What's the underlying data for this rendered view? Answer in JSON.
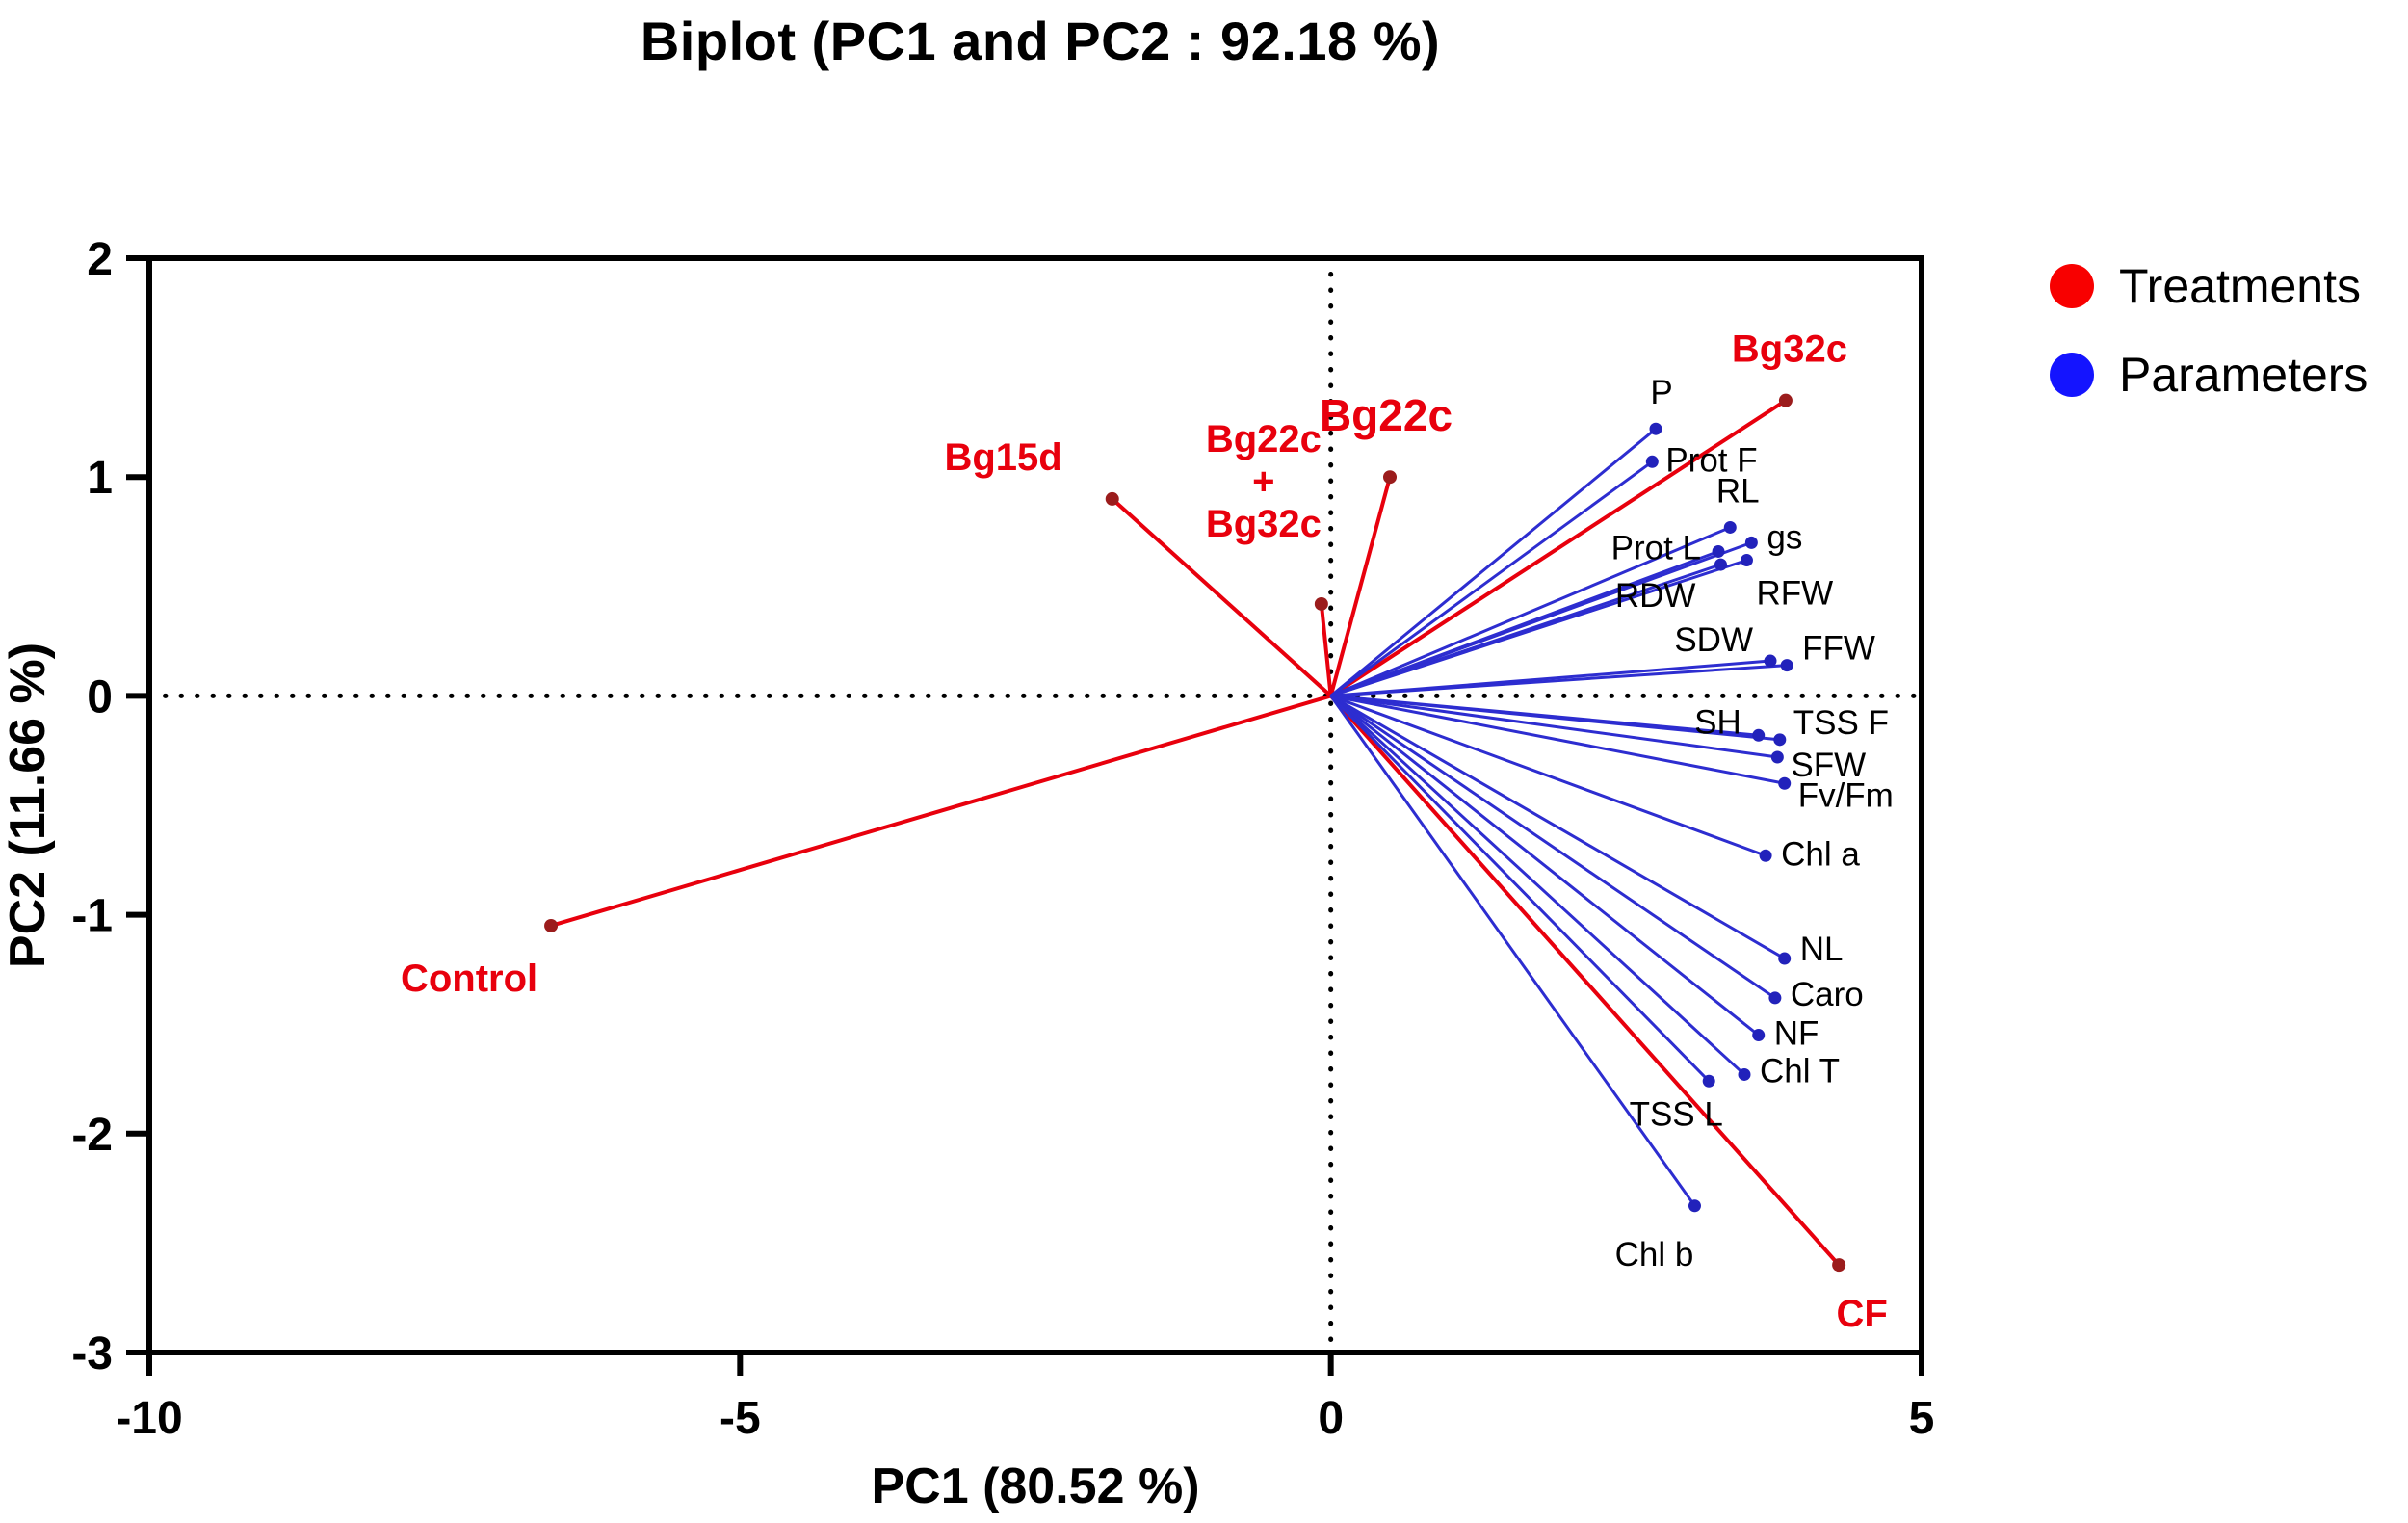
{
  "title": "Biplot (PC1 and PC2 : 92.18 %)",
  "legend": {
    "items": [
      {
        "label": "Treatments",
        "color": "#f80000"
      },
      {
        "label": "Parameters",
        "color": "#1414ff"
      }
    ]
  },
  "chart_data": {
    "type": "scatter",
    "subtype": "pca-biplot",
    "title": "Biplot (PC1 and PC2 : 92.18 %)",
    "xlabel": "PC1 (80.52 %)",
    "ylabel": "PC2 (11.66 %)",
    "xlim": [
      -10,
      5
    ],
    "ylim": [
      -3,
      2
    ],
    "xticks": [
      -10,
      -5,
      0,
      5
    ],
    "yticks": [
      2,
      1,
      0,
      -1,
      -2,
      -3
    ],
    "grid": false,
    "zero_lines": "dotted",
    "legend_position": "right",
    "origin": [
      0,
      0
    ],
    "series": [
      {
        "name": "Treatments",
        "color": "#e8000d",
        "dot_color": "#9b1c1c",
        "dot_r": 7,
        "line_width": 4,
        "label_color": "#e8000d",
        "label_weight": "bold",
        "label_size": 40,
        "big_label_size": 46,
        "label_line_height": 44,
        "points": [
          {
            "label": "Control",
            "x": -6.6,
            "y": -1.05,
            "lx": -85,
            "ly": 68,
            "anchor": "middle"
          },
          {
            "label": "Bg15d",
            "x": -1.85,
            "y": 0.9,
            "lx": -52,
            "ly": -30,
            "anchor": "end"
          },
          {
            "label": "Bg22c + Bg32c",
            "lines": [
              "Bg22c",
              "+",
              "Bg32c"
            ],
            "x": -0.08,
            "y": 0.42,
            "lx": -60,
            "ly": -158,
            "anchor": "middle"
          },
          {
            "label": "Bg22c",
            "x": 0.5,
            "y": 1.0,
            "lx": -4,
            "ly": -48,
            "anchor": "middle",
            "big": true
          },
          {
            "label": "Bg32c",
            "x": 3.85,
            "y": 1.35,
            "lx": 4,
            "ly": -40,
            "anchor": "middle"
          },
          {
            "label": "CF",
            "x": 4.3,
            "y": -2.6,
            "lx": 24,
            "ly": 64,
            "anchor": "middle"
          }
        ]
      },
      {
        "name": "Parameters",
        "color": "#2d2dd0",
        "dot_color": "#2222bb",
        "dot_r": 6.5,
        "line_width": 3,
        "label_color": "#000000",
        "label_weight": "normal",
        "label_size": 35,
        "big_label_size": 35,
        "label_line_height": 40,
        "points": [
          {
            "label": "P",
            "x": 2.75,
            "y": 1.22,
            "lx": 6,
            "ly": -26,
            "anchor": "middle"
          },
          {
            "label": "Prot F",
            "x": 2.72,
            "y": 1.07,
            "lx": 14,
            "ly": 10,
            "anchor": "start"
          },
          {
            "label": "RL",
            "x": 3.38,
            "y": 0.77,
            "lx": 8,
            "ly": -26,
            "anchor": "middle"
          },
          {
            "label": "gs",
            "x": 3.56,
            "y": 0.7,
            "lx": 16,
            "ly": 6,
            "anchor": "start"
          },
          {
            "label": "Prot L",
            "x": 3.28,
            "y": 0.66,
            "lx": -18,
            "ly": 8,
            "anchor": "end"
          },
          {
            "label": "RDW",
            "x": 3.3,
            "y": 0.6,
            "lx": -26,
            "ly": 44,
            "anchor": "end"
          },
          {
            "label": "RFW",
            "x": 3.52,
            "y": 0.62,
            "lx": 10,
            "ly": 46,
            "anchor": "start"
          },
          {
            "label": "SDW",
            "x": 3.72,
            "y": 0.16,
            "lx": -18,
            "ly": -10,
            "anchor": "end"
          },
          {
            "label": "FFW",
            "x": 3.86,
            "y": 0.14,
            "lx": 16,
            "ly": -6,
            "anchor": "start"
          },
          {
            "label": "SH",
            "x": 3.62,
            "y": -0.18,
            "lx": -18,
            "ly": -2,
            "anchor": "end"
          },
          {
            "label": "TSS F",
            "x": 3.8,
            "y": -0.2,
            "lx": 14,
            "ly": -6,
            "anchor": "start"
          },
          {
            "label": "SFW",
            "x": 3.78,
            "y": -0.28,
            "lx": 14,
            "ly": 20,
            "anchor": "start"
          },
          {
            "label": "Fv/Fm",
            "x": 3.84,
            "y": -0.4,
            "lx": 14,
            "ly": 24,
            "anchor": "start"
          },
          {
            "label": "Chl a",
            "x": 3.68,
            "y": -0.73,
            "lx": 16,
            "ly": 10,
            "anchor": "start"
          },
          {
            "label": "NL",
            "x": 3.84,
            "y": -1.2,
            "lx": 16,
            "ly": 2,
            "anchor": "start"
          },
          {
            "label": "Caro",
            "x": 3.76,
            "y": -1.38,
            "lx": 16,
            "ly": 8,
            "anchor": "start"
          },
          {
            "label": "NF",
            "x": 3.62,
            "y": -1.55,
            "lx": 16,
            "ly": 10,
            "anchor": "start"
          },
          {
            "label": "Chl T",
            "x": 3.5,
            "y": -1.73,
            "lx": 16,
            "ly": 8,
            "anchor": "start"
          },
          {
            "label": "TSS L",
            "x": 3.2,
            "y": -1.76,
            "lx": -34,
            "ly": 46,
            "anchor": "middle"
          },
          {
            "label": "Chl b",
            "x": 3.08,
            "y": -2.33,
            "lx": -42,
            "ly": 62,
            "anchor": "middle"
          }
        ]
      }
    ]
  }
}
